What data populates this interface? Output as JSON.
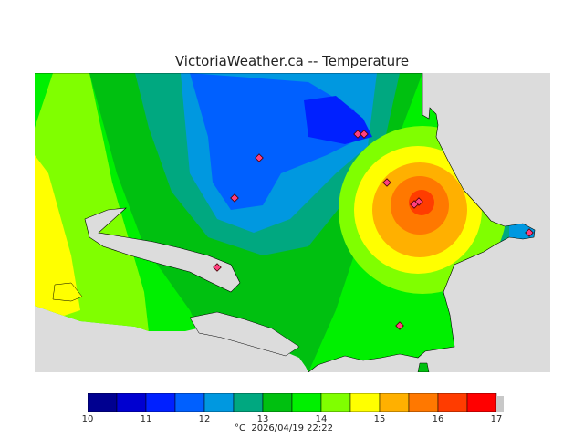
{
  "title": "VictoriaWeather.ca -- Temperature",
  "legend": {
    "colors": [
      "#000090",
      "#0000d0",
      "#0020ff",
      "#0060ff",
      "#0098e0",
      "#00a880",
      "#00c010",
      "#00f000",
      "#80ff00",
      "#ffff00",
      "#ffb000",
      "#ff7800",
      "#ff3c00",
      "#ff0000"
    ],
    "ticks": [
      "10",
      "11",
      "12",
      "13",
      "14",
      "15",
      "16",
      "17"
    ],
    "extra_color": "#c8c8c8"
  },
  "footer": {
    "unit": "°C",
    "timestamp": "2026/04/19 22:22"
  },
  "map_colors": {
    "ocean": "#dcdcdc",
    "blue": "#0060ff",
    "darkblue": "#0020ff",
    "skyblue": "#0098e0",
    "teal": "#00a880",
    "green": "#00c010",
    "brightgreen": "#00f000",
    "lime": "#80ff00",
    "yellow": "#ffff00",
    "orange": "#ffb000",
    "darkorange": "#ff7800",
    "red": "#ff3c00"
  }
}
